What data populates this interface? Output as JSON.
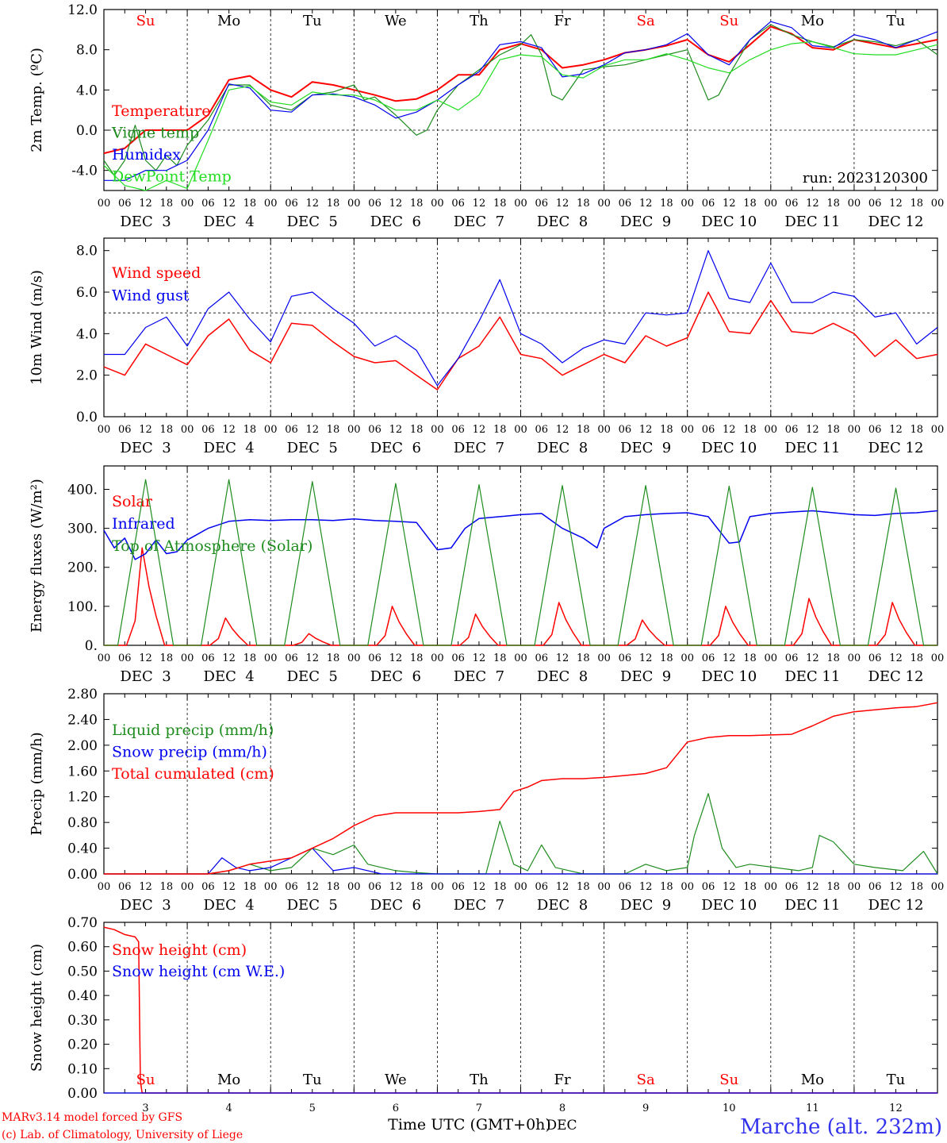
{
  "colors": {
    "red": "#ff0000",
    "blue": "#0000ee",
    "darkgreen": "#1e8c1e",
    "lightgreen": "#22dd22",
    "axis": "#000000",
    "grid": "#000000",
    "station": "#3333ee",
    "credit": "#ff0000"
  },
  "days": {
    "names": [
      "Su",
      "Mo",
      "Tu",
      "We",
      "Th",
      "Fr",
      "Sa",
      "Su",
      "Mo",
      "Tu"
    ],
    "red_flags": [
      true,
      false,
      false,
      false,
      false,
      false,
      true,
      true,
      false,
      false
    ],
    "date_labels": [
      "DEC  3",
      "DEC  4",
      "DEC  5",
      "DEC  6",
      "DEC  7",
      "DEC  8",
      "DEC  9",
      "DEC 10",
      "DEC 11",
      "DEC 12"
    ],
    "day_numbers": [
      "3",
      "4",
      "5",
      "6",
      "7",
      "8",
      "9",
      "10",
      "11",
      "12"
    ]
  },
  "hour_ticks": [
    "00",
    "06",
    "12",
    "18"
  ],
  "last_hour_tick": "00",
  "footer": {
    "xlabel": "Time UTC (GMT+0h)",
    "month": "DEC",
    "credit_line1": "MARv3.14 model forced by GFS",
    "credit_line2": "(c) Lab. of Climatology, University of Liege",
    "station": "Marche (alt. 232m)"
  },
  "chart_data": [
    {
      "id": "temp",
      "type": "line",
      "ylabel": "2m Temp. (ºC)",
      "ylim": [
        -6,
        12
      ],
      "yticks": [
        -4.0,
        0.0,
        4.0,
        8.0,
        12.0
      ],
      "ytick_labels": [
        "-4.0",
        "0.0",
        "4.0",
        "8.0",
        "12.0"
      ],
      "annotation": "run: 2023120300",
      "refline": 0,
      "x_unit": "hours since DEC 3 00 UTC",
      "series": [
        {
          "name": "Temperature",
          "color": "#ff0000",
          "width": 2,
          "x": [
            0,
            6,
            12,
            18,
            24,
            30,
            36,
            42,
            48,
            54,
            60,
            66,
            72,
            78,
            84,
            90,
            96,
            102,
            108,
            114,
            120,
            126,
            132,
            138,
            144,
            150,
            156,
            162,
            168,
            174,
            180,
            186,
            192,
            198,
            204,
            210,
            216,
            222,
            228,
            234,
            240
          ],
          "y": [
            -2.3,
            -1.8,
            0,
            0,
            0,
            1.5,
            5.0,
            5.4,
            4.0,
            3.3,
            4.8,
            4.5,
            4.0,
            3.5,
            2.9,
            3.1,
            4.0,
            5.5,
            5.5,
            8.0,
            8.6,
            8.0,
            6.2,
            6.5,
            7.0,
            7.7,
            8.0,
            8.4,
            9.0,
            7.5,
            6.8,
            8.5,
            10.3,
            9.6,
            8.2,
            8.0,
            9.0,
            8.6,
            8.2,
            8.6,
            9.0
          ]
        },
        {
          "name": "Vigne temp",
          "color": "#1e8c1e",
          "width": 1.2,
          "x": [
            0,
            3,
            6,
            9,
            12,
            15,
            18,
            21,
            24,
            30,
            36,
            42,
            48,
            54,
            60,
            66,
            72,
            75,
            78,
            84,
            90,
            93,
            96,
            102,
            108,
            114,
            120,
            123,
            126,
            129,
            132,
            138,
            144,
            150,
            156,
            162,
            168,
            171,
            174,
            177,
            180,
            186,
            192,
            198,
            204,
            210,
            216,
            222,
            228,
            234,
            240
          ],
          "y": [
            -3.0,
            -4.5,
            -3.0,
            0.5,
            -3.0,
            -4.0,
            -2.5,
            -3.5,
            -1.5,
            1.0,
            4.5,
            4.5,
            2.5,
            2.0,
            3.5,
            3.8,
            4.5,
            3.0,
            3.3,
            1.5,
            -0.5,
            0,
            2.0,
            4.5,
            6.0,
            7.5,
            8.5,
            9.5,
            7.5,
            3.5,
            3.0,
            6.0,
            6.3,
            6.5,
            7.0,
            7.5,
            8.0,
            5.5,
            3.0,
            3.5,
            5.5,
            9.0,
            10.5,
            9.5,
            8.8,
            8.3,
            9.0,
            8.8,
            8.4,
            9.0,
            7.5
          ]
        },
        {
          "name": "Humidex",
          "color": "#0000ee",
          "width": 1.2,
          "x": [
            0,
            6,
            12,
            18,
            24,
            30,
            36,
            42,
            48,
            54,
            60,
            66,
            72,
            78,
            84,
            90,
            96,
            102,
            108,
            114,
            120,
            126,
            132,
            138,
            144,
            150,
            156,
            162,
            168,
            174,
            180,
            186,
            192,
            198,
            204,
            210,
            216,
            222,
            228,
            234,
            240
          ],
          "y": [
            -5.0,
            -5.0,
            -4.0,
            -4.0,
            -3.0,
            0.0,
            4.6,
            4.2,
            2.0,
            1.8,
            3.5,
            3.6,
            3.3,
            2.5,
            1.2,
            1.8,
            3.0,
            4.5,
            5.8,
            8.5,
            8.8,
            8.2,
            5.3,
            5.6,
            6.5,
            7.7,
            8.0,
            8.5,
            9.6,
            7.5,
            6.5,
            9.0,
            10.8,
            10.2,
            8.4,
            8.2,
            9.5,
            9.0,
            8.2,
            9.0,
            9.8
          ]
        },
        {
          "name": "DewPoint Temp",
          "color": "#22dd22",
          "width": 1.2,
          "x": [
            0,
            6,
            12,
            18,
            24,
            30,
            36,
            42,
            48,
            54,
            60,
            66,
            72,
            78,
            84,
            90,
            96,
            102,
            108,
            114,
            120,
            126,
            132,
            138,
            144,
            150,
            156,
            162,
            168,
            174,
            180,
            186,
            192,
            198,
            204,
            210,
            216,
            222,
            228,
            234,
            240
          ],
          "y": [
            -3.5,
            -5.5,
            -6.0,
            -5.0,
            -5.8,
            -1.0,
            4.0,
            4.4,
            2.8,
            2.5,
            3.8,
            3.5,
            3.5,
            3.0,
            2.0,
            2.0,
            3.0,
            2.0,
            3.5,
            7.0,
            7.5,
            7.3,
            5.5,
            5.2,
            6.4,
            7.0,
            7.0,
            7.6,
            7.0,
            6.2,
            5.7,
            7.0,
            8.0,
            8.6,
            8.8,
            8.2,
            7.6,
            7.5,
            7.5,
            8.0,
            8.5
          ]
        }
      ]
    },
    {
      "id": "wind",
      "type": "line",
      "ylabel": "10m Wind (m/s)",
      "ylim": [
        0,
        8.6
      ],
      "yticks": [
        0,
        2,
        4,
        6,
        8
      ],
      "ytick_labels": [
        "0.0",
        "2.0",
        "4.0",
        "6.0",
        "8.0"
      ],
      "refline": 5,
      "x_unit": "hours since DEC 3 00 UTC",
      "series": [
        {
          "name": "Wind speed",
          "color": "#ff0000",
          "width": 1.5,
          "x": [
            0,
            6,
            12,
            18,
            24,
            30,
            36,
            42,
            48,
            54,
            60,
            66,
            72,
            78,
            84,
            90,
            96,
            102,
            108,
            114,
            120,
            126,
            132,
            138,
            144,
            150,
            156,
            162,
            168,
            174,
            180,
            186,
            192,
            198,
            204,
            210,
            216,
            222,
            228,
            234,
            240
          ],
          "y": [
            2.4,
            2.0,
            3.5,
            3.0,
            2.5,
            3.9,
            4.7,
            3.2,
            2.6,
            4.5,
            4.4,
            3.6,
            2.9,
            2.6,
            2.7,
            2.0,
            1.3,
            2.8,
            3.4,
            4.8,
            3.0,
            2.8,
            2.0,
            2.5,
            3.0,
            2.6,
            3.9,
            3.4,
            3.8,
            6.0,
            4.1,
            4.0,
            5.6,
            4.1,
            4.0,
            4.5,
            4.0,
            2.9,
            3.7,
            2.8,
            3.0
          ]
        },
        {
          "name": "Wind gust",
          "color": "#0000ee",
          "width": 1.2,
          "x": [
            0,
            6,
            12,
            18,
            24,
            30,
            36,
            42,
            48,
            54,
            60,
            66,
            72,
            78,
            84,
            90,
            96,
            102,
            108,
            114,
            120,
            126,
            132,
            138,
            144,
            150,
            156,
            162,
            168,
            174,
            180,
            186,
            192,
            198,
            204,
            210,
            216,
            222,
            228,
            234,
            240
          ],
          "y": [
            3.0,
            3.0,
            4.3,
            4.8,
            3.4,
            5.2,
            6.0,
            4.7,
            3.6,
            5.8,
            6.0,
            5.2,
            4.5,
            3.4,
            3.9,
            3.2,
            1.5,
            2.8,
            4.6,
            6.6,
            4.0,
            3.5,
            2.6,
            3.3,
            3.7,
            3.5,
            5.0,
            4.9,
            5.0,
            8.0,
            5.7,
            5.5,
            7.4,
            5.5,
            5.5,
            6.0,
            5.8,
            4.8,
            5.0,
            3.5,
            4.3
          ]
        }
      ]
    },
    {
      "id": "flux",
      "type": "line",
      "ylabel": "Energy fluxes (W/m²)",
      "ylim": [
        0,
        460
      ],
      "yticks": [
        0,
        100,
        200,
        300,
        400
      ],
      "ytick_labels": [
        "0.",
        "100.",
        "200.",
        "300.",
        "400."
      ],
      "x_unit": "hours since DEC 3 00 UTC",
      "daily_peaks": {
        "toa_peak": [
          425,
          425,
          420,
          415,
          412,
          410,
          410,
          408,
          405,
          403
        ],
        "solar_peak": [
          250,
          70,
          30,
          100,
          80,
          110,
          65,
          100,
          120,
          110
        ],
        "peak_hour": 12
      },
      "series": [
        {
          "name": "Solar",
          "color": "#ff0000",
          "width": 1.5
        },
        {
          "name": "Infrared",
          "color": "#0000ee",
          "width": 1.5,
          "x": [
            0,
            3,
            6,
            9,
            12,
            15,
            18,
            21,
            24,
            30,
            36,
            42,
            48,
            54,
            60,
            66,
            72,
            78,
            84,
            90,
            96,
            100,
            104,
            108,
            114,
            120,
            126,
            132,
            138,
            142,
            144,
            150,
            156,
            162,
            168,
            174,
            180,
            183,
            186,
            192,
            198,
            204,
            210,
            216,
            222,
            228,
            234,
            240
          ],
          "y": [
            295,
            250,
            275,
            220,
            235,
            270,
            235,
            240,
            270,
            300,
            318,
            322,
            320,
            322,
            322,
            320,
            324,
            320,
            318,
            315,
            245,
            250,
            300,
            325,
            330,
            335,
            338,
            300,
            275,
            250,
            300,
            330,
            335,
            338,
            340,
            330,
            262,
            265,
            330,
            338,
            342,
            345,
            340,
            335,
            333,
            338,
            340,
            345
          ]
        },
        {
          "name": "Top of Atmosphere (Solar)",
          "color": "#1e8c1e",
          "width": 1.2
        }
      ]
    },
    {
      "id": "precip",
      "type": "line",
      "ylabel": "Precip (mm/h)",
      "ylim": [
        0,
        2.8
      ],
      "yticks": [
        0,
        0.4,
        0.8,
        1.2,
        1.6,
        2.0,
        2.4,
        2.8
      ],
      "ytick_labels": [
        "0.00",
        "0.40",
        "0.80",
        "1.20",
        "1.60",
        "2.00",
        "2.40",
        "2.80"
      ],
      "x_unit": "hours since DEC 3 00 UTC",
      "series": [
        {
          "name": "Liquid precip (mm/h)",
          "color": "#1e8c1e",
          "width": 1.2,
          "x": [
            0,
            30,
            36,
            42,
            48,
            54,
            60,
            66,
            72,
            76,
            80,
            84,
            90,
            96,
            110,
            114,
            118,
            122,
            126,
            130,
            134,
            138,
            150,
            156,
            162,
            168,
            170,
            174,
            178,
            182,
            186,
            200,
            204,
            206,
            210,
            216,
            222,
            230,
            236,
            240
          ],
          "y": [
            0,
            0,
            0.05,
            0.15,
            0.05,
            0.1,
            0.4,
            0.3,
            0.45,
            0.15,
            0.1,
            0.05,
            0.02,
            0,
            0,
            0.82,
            0.15,
            0.05,
            0.45,
            0.1,
            0.05,
            0,
            0,
            0.15,
            0.05,
            0.1,
            0.6,
            1.25,
            0.4,
            0.1,
            0.15,
            0.05,
            0.1,
            0.6,
            0.5,
            0.15,
            0.1,
            0.05,
            0.35,
            0
          ]
        },
        {
          "name": "Snow precip (mm/h)",
          "color": "#0000ee",
          "width": 1.2,
          "x": [
            0,
            30,
            34,
            38,
            42,
            48,
            54,
            60,
            66,
            72,
            80,
            240
          ],
          "y": [
            0,
            0,
            0.25,
            0.1,
            0.05,
            0.1,
            0.25,
            0.4,
            0.05,
            0.1,
            0,
            0
          ]
        },
        {
          "name": "Total cumulated (cm)",
          "color": "#ff0000",
          "width": 1.5,
          "x": [
            0,
            30,
            36,
            42,
            48,
            54,
            60,
            66,
            72,
            78,
            84,
            90,
            96,
            102,
            108,
            114,
            118,
            122,
            126,
            132,
            138,
            144,
            150,
            156,
            162,
            168,
            174,
            180,
            186,
            192,
            198,
            204,
            210,
            216,
            222,
            228,
            234,
            240
          ],
          "y": [
            0,
            0,
            0.05,
            0.15,
            0.2,
            0.25,
            0.4,
            0.55,
            0.75,
            0.9,
            0.95,
            0.95,
            0.95,
            0.95,
            0.97,
            1.0,
            1.28,
            1.35,
            1.45,
            1.48,
            1.48,
            1.5,
            1.53,
            1.56,
            1.65,
            2.05,
            2.12,
            2.15,
            2.15,
            2.16,
            2.17,
            2.3,
            2.45,
            2.52,
            2.55,
            2.58,
            2.6,
            2.66
          ]
        }
      ]
    },
    {
      "id": "snow",
      "type": "line",
      "ylabel": "Snow height (cm)",
      "ylim": [
        0,
        0.7
      ],
      "yticks": [
        0,
        0.1,
        0.2,
        0.3,
        0.4,
        0.5,
        0.6,
        0.7
      ],
      "ytick_labels": [
        "0.00",
        "0.10",
        "0.20",
        "0.30",
        "0.40",
        "0.50",
        "0.60",
        "0.70"
      ],
      "x_unit": "hours since DEC 3 00 UTC",
      "series": [
        {
          "name": "Snow height (cm)",
          "color": "#ff0000",
          "width": 1.5,
          "x": [
            0,
            3,
            6,
            9,
            10,
            10.5,
            11,
            240
          ],
          "y": [
            0.68,
            0.67,
            0.65,
            0.64,
            0.62,
            0.05,
            0,
            0
          ]
        },
        {
          "name": "Snow height (cm W.E.)",
          "color": "#0000ee",
          "width": 1.2,
          "x": [
            0,
            240
          ],
          "y": [
            0,
            0
          ]
        }
      ]
    }
  ]
}
